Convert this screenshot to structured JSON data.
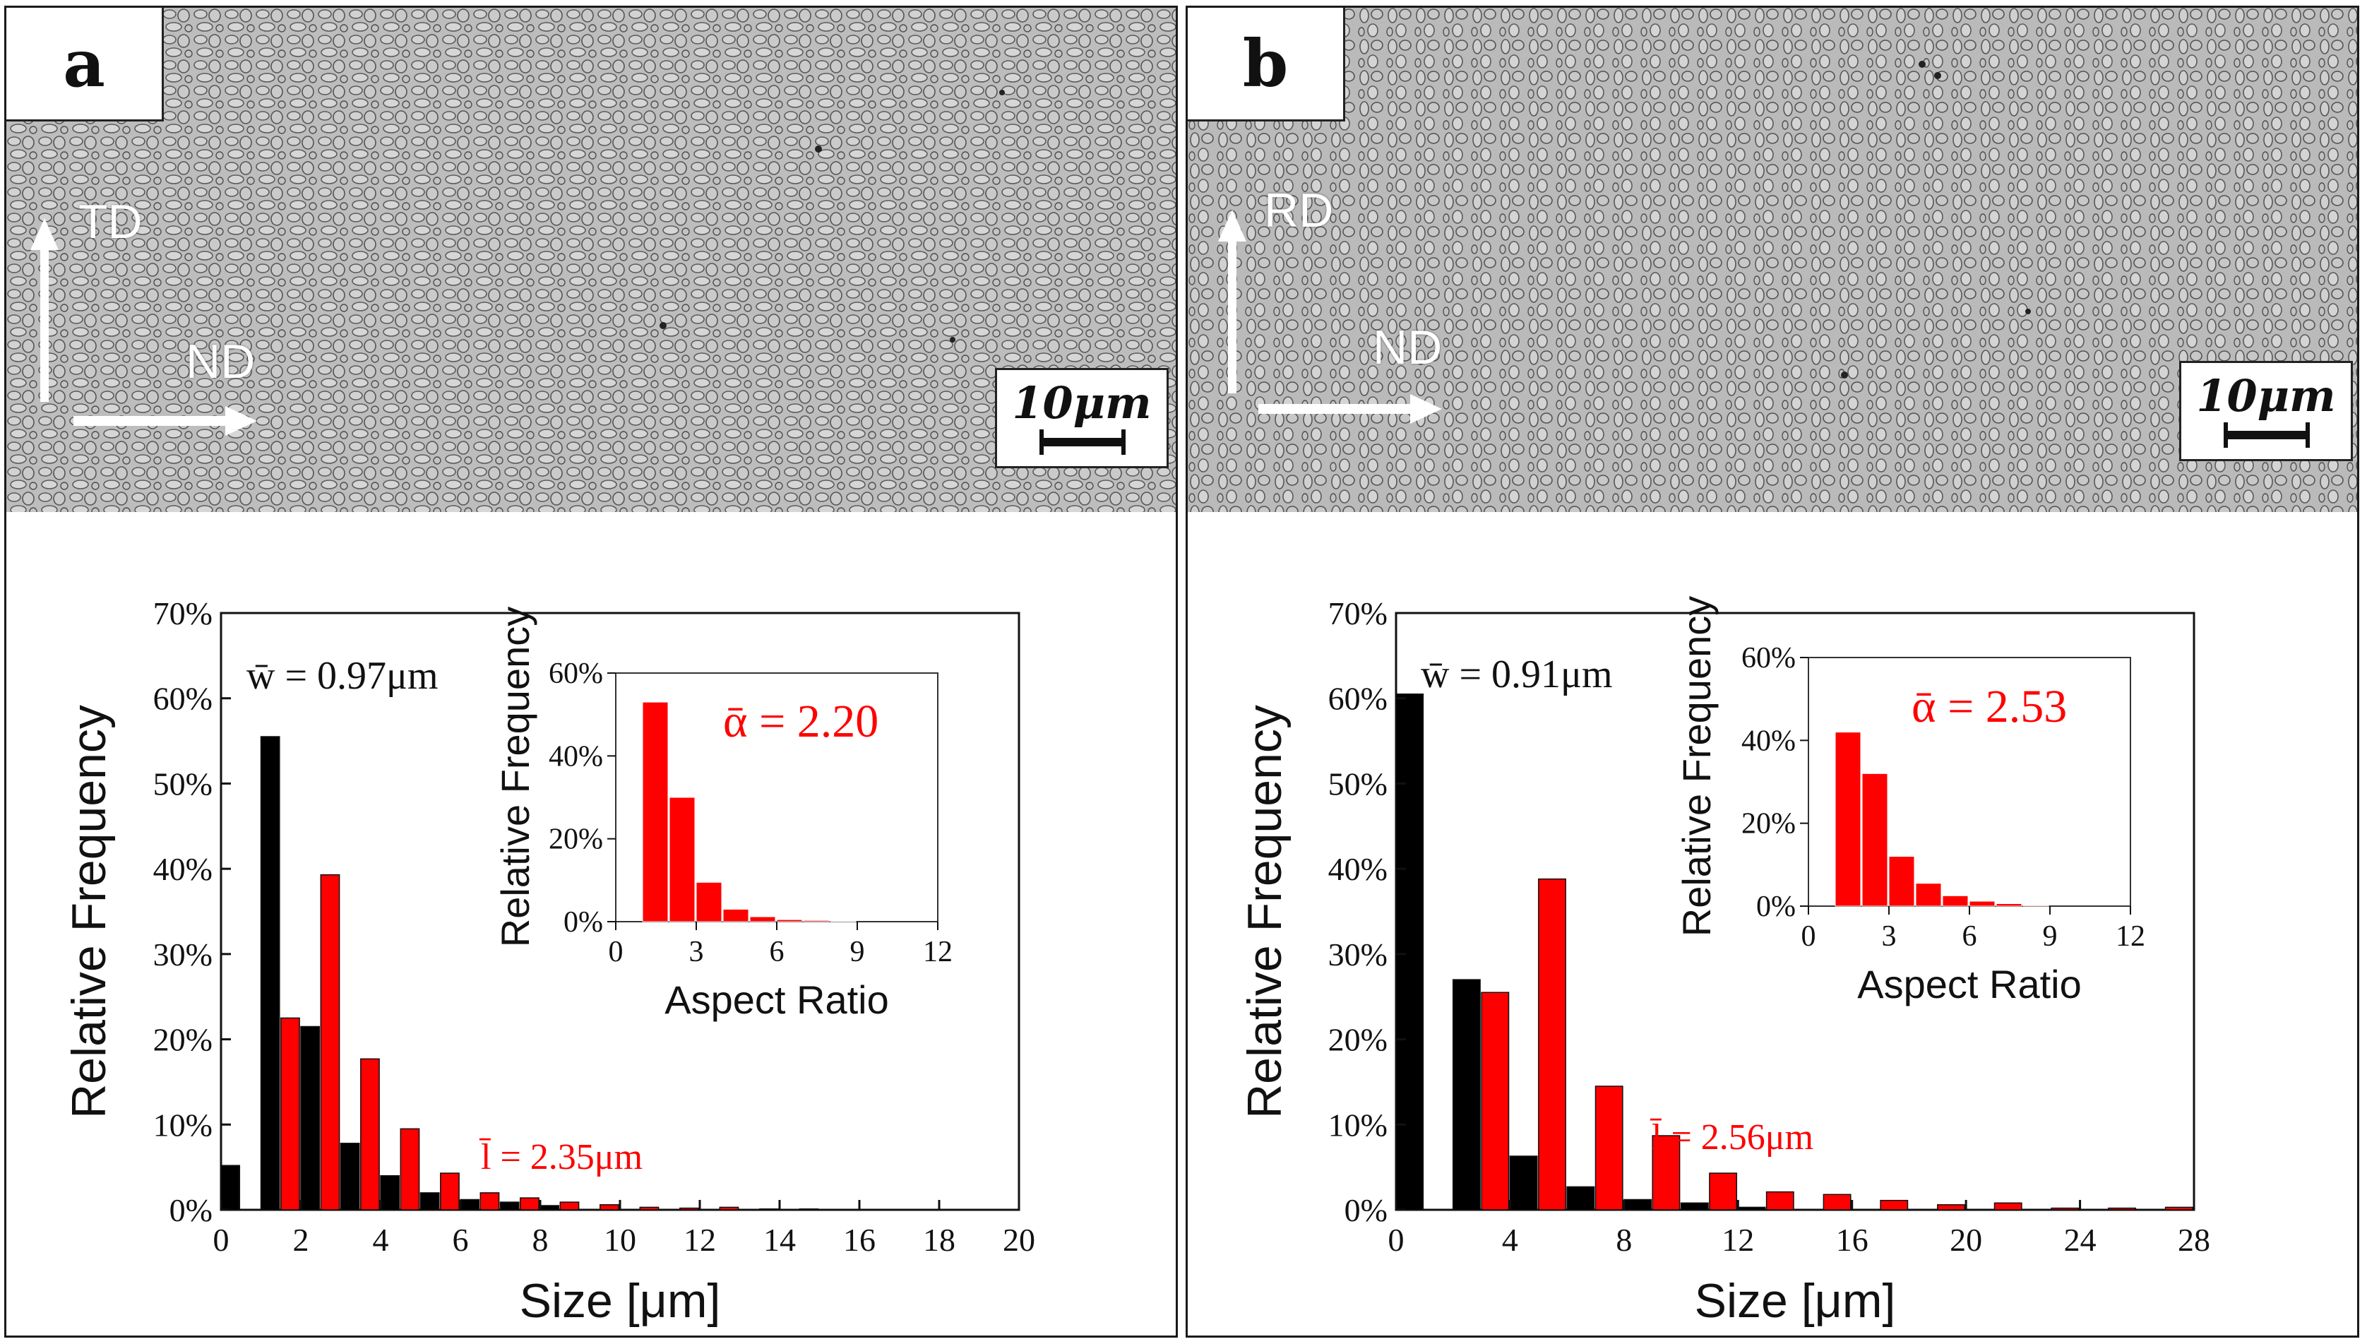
{
  "colors": {
    "black_series": "#000000",
    "red_series": "#ff0000",
    "text": "#111111"
  },
  "panels": [
    {
      "label": "a",
      "vertical_dir": "TD",
      "horizontal_dir": "ND",
      "scale_bar": "10μm",
      "mean_width_label": "w̄ = 0.97μm",
      "mean_length_label": "l̄ = 2.35μm",
      "mean_alpha_label": "ᾱ = 2.20"
    },
    {
      "label": "b",
      "vertical_dir": "RD",
      "horizontal_dir": "ND",
      "scale_bar": "10μm",
      "mean_width_label": "w̄ = 0.91μm",
      "mean_length_label": "l̄ = 2.56μm",
      "mean_alpha_label": "ᾱ = 2.53"
    }
  ],
  "chart_data": [
    {
      "panel": "a",
      "type": "bar",
      "xlabel": "Size [μm]",
      "ylabel": "Relative Frequency",
      "xlim": [
        0,
        20
      ],
      "xticks": [
        0,
        2,
        4,
        6,
        8,
        10,
        12,
        14,
        16,
        18,
        20
      ],
      "ylim": [
        0,
        70
      ],
      "yticks": [
        "0%",
        "10%",
        "20%",
        "30%",
        "40%",
        "50%",
        "60%",
        "70%"
      ],
      "series": [
        {
          "name": "width",
          "color": "#000000",
          "x": [
            0,
            1,
            2,
            3,
            4,
            5,
            6,
            7,
            8
          ],
          "values": [
            5.2,
            55.5,
            21.5,
            7.8,
            4.0,
            2.0,
            1.2,
            0.9,
            0.5
          ]
        },
        {
          "name": "length",
          "color": "#ff0000",
          "x": [
            1,
            2,
            3,
            4,
            5,
            6,
            7,
            8,
            9,
            10,
            11,
            12,
            13,
            14
          ],
          "values": [
            22.5,
            39.3,
            17.7,
            9.5,
            4.3,
            2.0,
            1.4,
            0.9,
            0.6,
            0.3,
            0.2,
            0.3,
            0.1,
            0.1
          ]
        }
      ],
      "inset": {
        "type": "bar",
        "xlabel": "Aspect Ratio",
        "ylabel": "Relative Frequency",
        "xlim": [
          0,
          12
        ],
        "xticks": [
          0,
          3,
          6,
          9,
          12
        ],
        "ylim": [
          0,
          60
        ],
        "yticks": [
          "0%",
          "20%",
          "40%",
          "60%"
        ],
        "color": "#ff0000",
        "x": [
          1.5,
          2.5,
          3.5,
          4.5,
          5.5,
          6.5,
          7.5,
          8.5
        ],
        "values": [
          53,
          30,
          9.5,
          3.0,
          1.2,
          0.5,
          0.3,
          0.1
        ]
      }
    },
    {
      "panel": "b",
      "type": "bar",
      "xlabel": "Size [μm]",
      "ylabel": "Relative Frequency",
      "xlim": [
        0,
        28
      ],
      "xticks": [
        0,
        4,
        8,
        12,
        16,
        20,
        24,
        28
      ],
      "ylim": [
        0,
        70
      ],
      "yticks": [
        "0%",
        "10%",
        "20%",
        "30%",
        "40%",
        "50%",
        "60%",
        "70%"
      ],
      "series": [
        {
          "name": "width",
          "color": "#000000",
          "x": [
            0,
            2,
            4,
            6,
            8,
            10,
            12
          ],
          "values": [
            60.5,
            27.0,
            6.3,
            2.7,
            1.2,
            0.8,
            0.3
          ]
        },
        {
          "name": "length",
          "color": "#ff0000",
          "x": [
            2,
            4,
            6,
            8,
            10,
            12,
            14,
            16,
            18,
            20,
            22,
            24,
            26
          ],
          "values": [
            25.5,
            38.8,
            14.5,
            8.7,
            4.3,
            2.1,
            1.8,
            1.1,
            0.6,
            0.8,
            0.2,
            0.2,
            0.3
          ]
        }
      ],
      "inset": {
        "type": "bar",
        "xlabel": "Aspect Ratio",
        "ylabel": "Relative Frequency",
        "xlim": [
          0,
          12
        ],
        "xticks": [
          0,
          3,
          6,
          9,
          12
        ],
        "ylim": [
          0,
          60
        ],
        "yticks": [
          "0%",
          "20%",
          "40%",
          "60%"
        ],
        "color": "#ff0000",
        "x": [
          1.5,
          2.5,
          3.5,
          4.5,
          5.5,
          6.5,
          7.5,
          8.5
        ],
        "values": [
          42,
          32,
          12,
          5.5,
          2.5,
          1.2,
          0.6,
          0.2
        ]
      }
    }
  ]
}
